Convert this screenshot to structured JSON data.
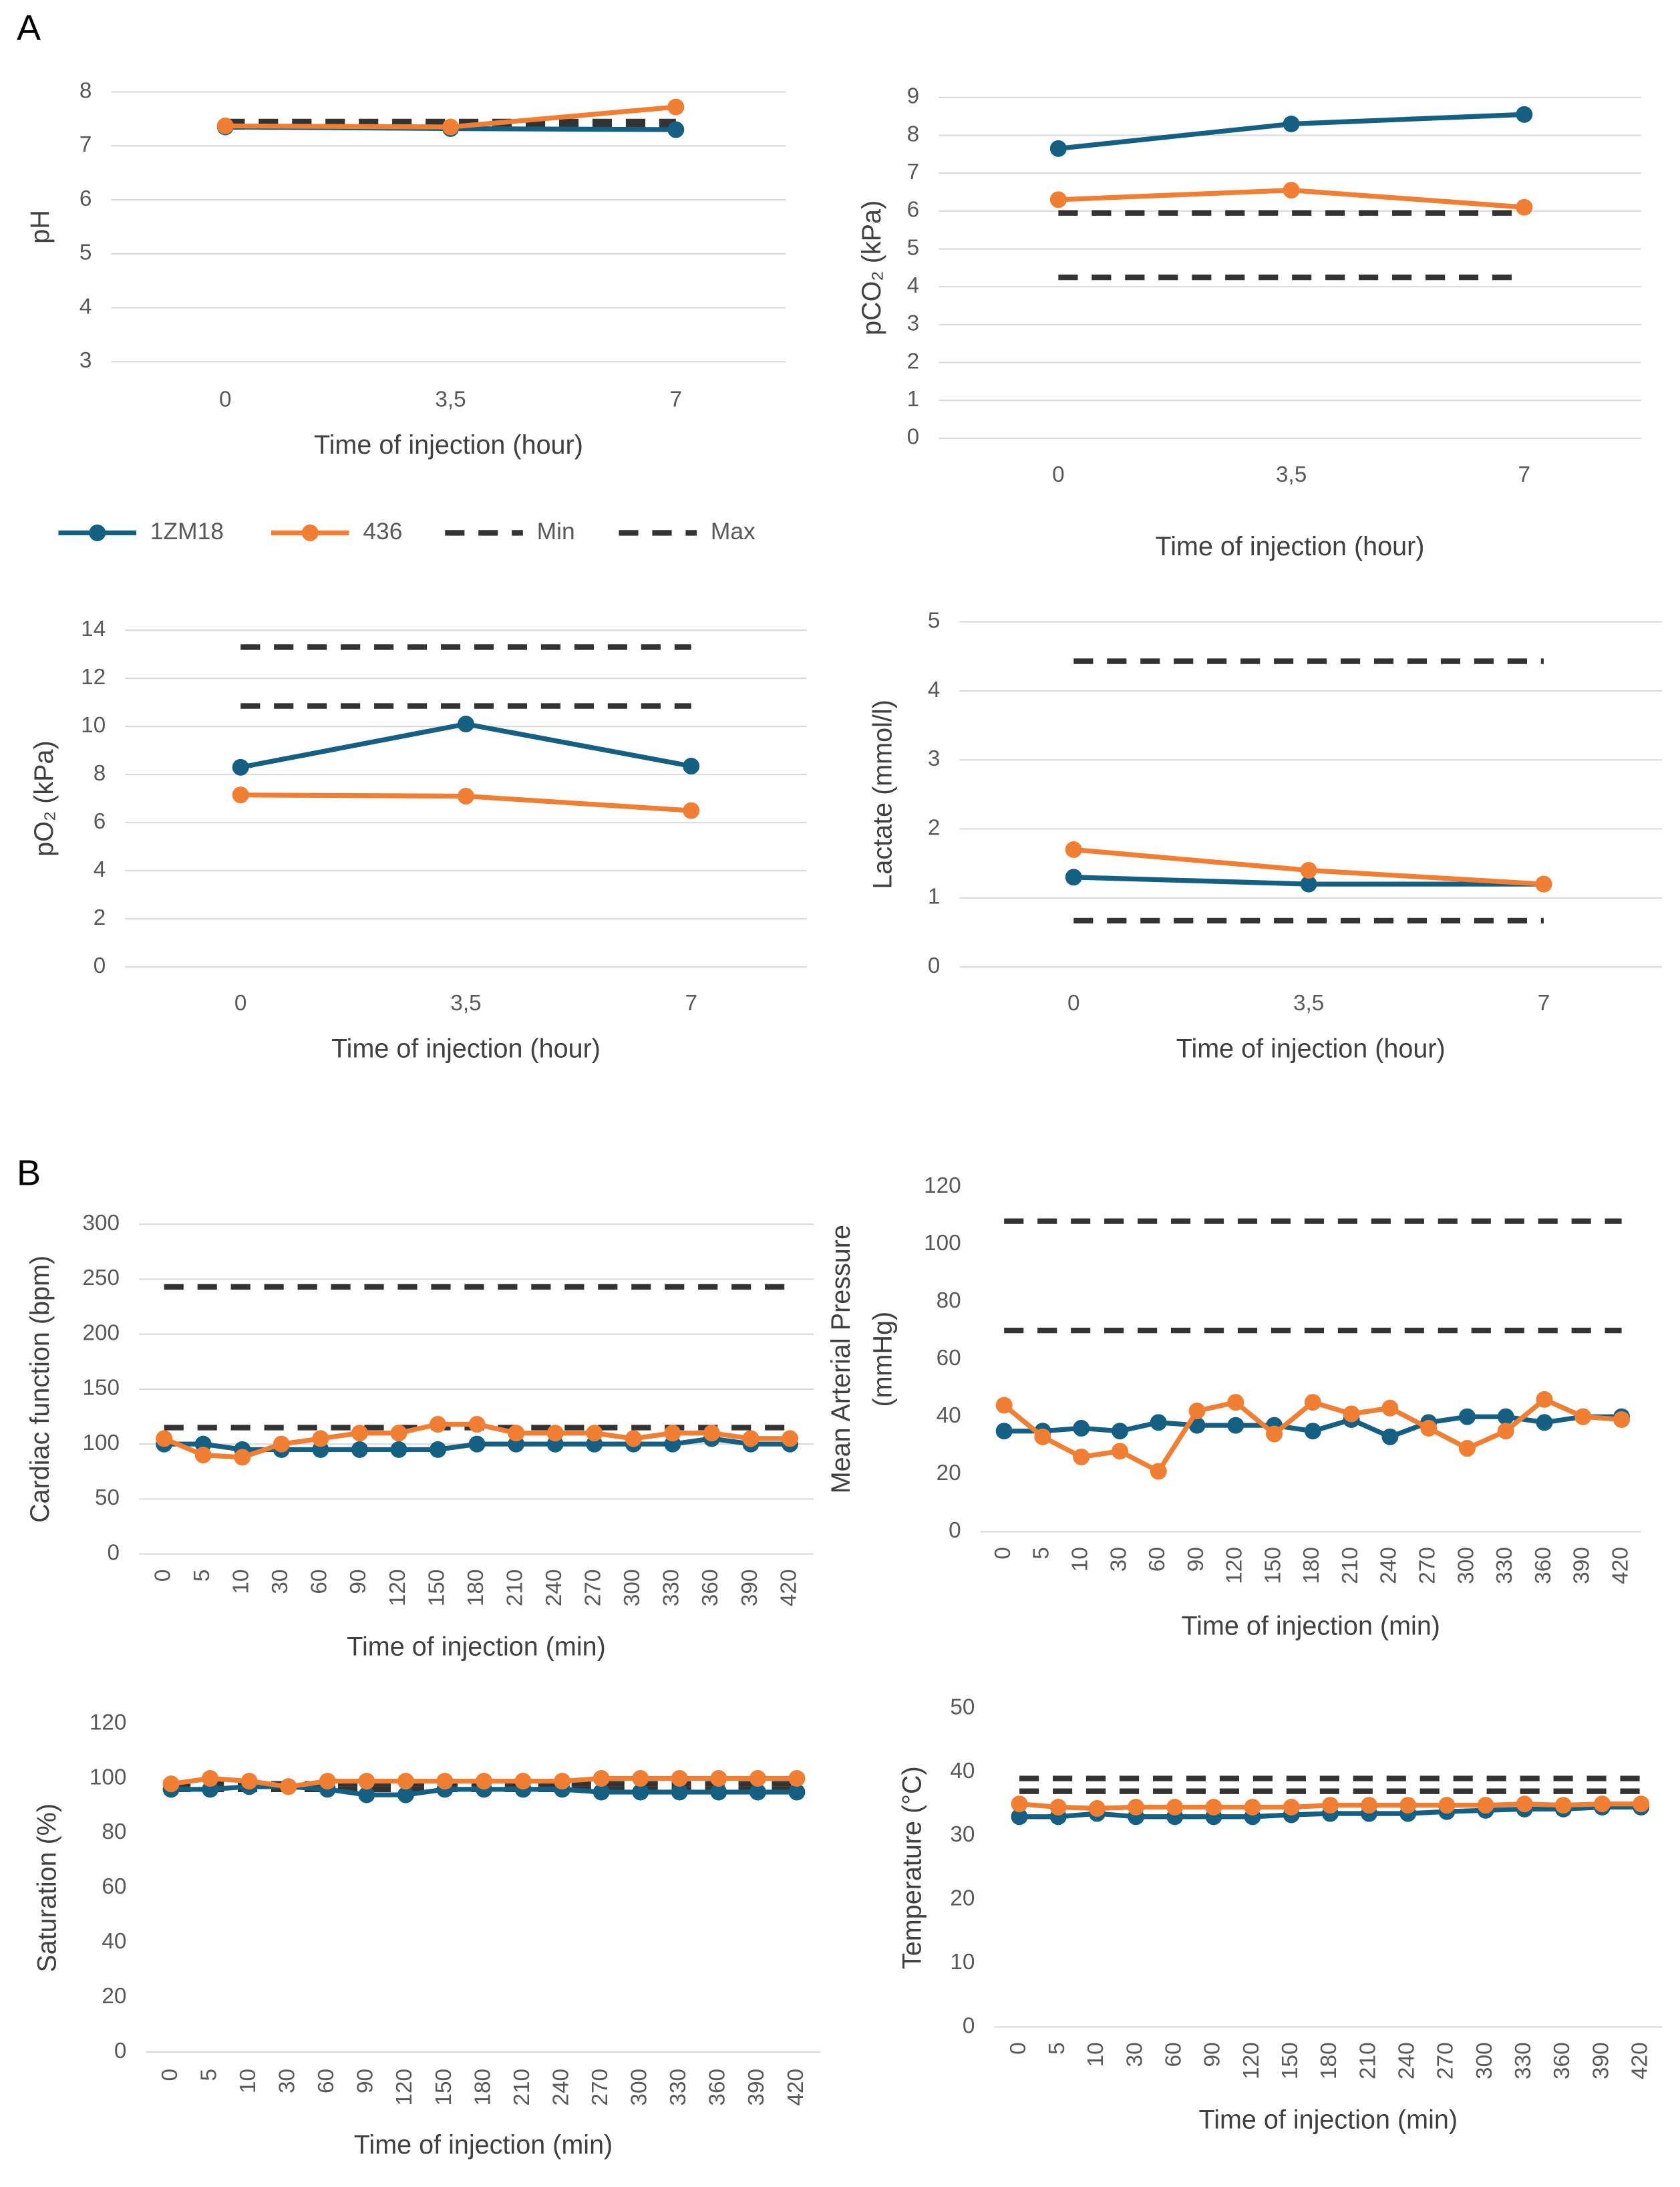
{
  "panels": [
    "A",
    "B"
  ],
  "chart_data": [
    {
      "type": "line",
      "y_label": "pH",
      "x_label": "Time of injection (hour)",
      "categories": [
        "0",
        "3,5",
        "7"
      ],
      "ylim": [
        3,
        8
      ],
      "yticks": [
        3,
        4,
        5,
        6,
        7,
        8
      ],
      "grid": true,
      "series": [
        {
          "name": "1ZM18",
          "color": "#156082",
          "values": [
            7.35,
            7.32,
            7.3
          ]
        },
        {
          "name": "436",
          "color": "#f07e33",
          "values": [
            7.37,
            7.35,
            7.72
          ]
        },
        {
          "name": "Min",
          "color": "#333333",
          "dashed": true,
          "values": [
            7.35,
            7.35,
            7.35
          ]
        },
        {
          "name": "Max",
          "color": "#333333",
          "dashed": true,
          "values": [
            7.45,
            7.45,
            7.45
          ]
        }
      ]
    },
    {
      "type": "line",
      "y_label": "pCO₂ (kPa)",
      "x_label": "Time of injection (hour)",
      "categories": [
        "0",
        "3,5",
        "7"
      ],
      "ylim": [
        0,
        9
      ],
      "yticks": [
        0,
        1,
        2,
        3,
        4,
        5,
        6,
        7,
        8,
        9
      ],
      "grid": true,
      "series": [
        {
          "color": "#156082",
          "values": [
            7.65,
            8.3,
            8.55
          ]
        },
        {
          "color": "#f07e33",
          "values": [
            6.3,
            6.55,
            6.1
          ]
        },
        {
          "color": "#333333",
          "dashed": true,
          "values": [
            4.25,
            4.25,
            4.25
          ]
        },
        {
          "color": "#333333",
          "dashed": true,
          "values": [
            5.95,
            5.95,
            5.95
          ]
        }
      ]
    },
    {
      "type": "line",
      "y_label": "pO₂ (kPa)",
      "x_label": "Time of injection (hour)",
      "categories": [
        "0",
        "3,5",
        "7"
      ],
      "ylim": [
        0,
        14
      ],
      "yticks": [
        0,
        2,
        4,
        6,
        8,
        10,
        12,
        14
      ],
      "grid": true,
      "series": [
        {
          "color": "#156082",
          "values": [
            8.3,
            10.1,
            8.35
          ]
        },
        {
          "color": "#f07e33",
          "values": [
            7.15,
            7.1,
            6.5
          ]
        },
        {
          "color": "#333333",
          "dashed": true,
          "values": [
            10.85,
            10.85,
            10.85
          ]
        },
        {
          "color": "#333333",
          "dashed": true,
          "values": [
            13.3,
            13.3,
            13.3
          ]
        }
      ]
    },
    {
      "type": "line",
      "y_label": "Lactate (mmol/l)",
      "x_label": "Time of injection (hour)",
      "categories": [
        "0",
        "3,5",
        "7"
      ],
      "ylim": [
        0,
        5
      ],
      "yticks": [
        0,
        1,
        2,
        3,
        4,
        5
      ],
      "grid": true,
      "series": [
        {
          "color": "#156082",
          "values": [
            1.3,
            1.2,
            1.2
          ]
        },
        {
          "color": "#f07e33",
          "values": [
            1.7,
            1.4,
            1.2
          ]
        },
        {
          "color": "#333333",
          "dashed": true,
          "values": [
            0.67,
            0.67,
            0.67
          ]
        },
        {
          "color": "#333333",
          "dashed": true,
          "values": [
            4.43,
            4.43,
            4.43
          ]
        }
      ]
    },
    {
      "type": "line",
      "y_label": "Cardiac function (bpm)",
      "x_label": "Time of injection (min)",
      "categories": [
        "0",
        "5",
        "10",
        "30",
        "60",
        "90",
        "120",
        "150",
        "180",
        "210",
        "240",
        "270",
        "300",
        "330",
        "360",
        "390",
        "420"
      ],
      "ylim": [
        0,
        300
      ],
      "yticks": [
        0,
        50,
        100,
        150,
        200,
        250,
        300
      ],
      "grid": true,
      "series": [
        {
          "color": "#156082",
          "values": [
            100,
            100,
            95,
            95,
            95,
            95,
            95,
            95,
            100,
            100,
            100,
            100,
            100,
            100,
            105,
            100,
            100
          ]
        },
        {
          "color": "#f07e33",
          "values": [
            105,
            90,
            88,
            100,
            105,
            110,
            110,
            118,
            118,
            110,
            110,
            110,
            105,
            110,
            110,
            105,
            105
          ]
        },
        {
          "color": "#333333",
          "dashed": true,
          "values": [
            115,
            115,
            115,
            115,
            115,
            115,
            115,
            115,
            115,
            115,
            115,
            115,
            115,
            115,
            115,
            115,
            115
          ]
        },
        {
          "color": "#333333",
          "dashed": true,
          "values": [
            243,
            243,
            243,
            243,
            243,
            243,
            243,
            243,
            243,
            243,
            243,
            243,
            243,
            243,
            243,
            243,
            243
          ]
        }
      ]
    },
    {
      "type": "line",
      "y_label": [
        "Mean Arterial Pressure",
        "(mmHg)"
      ],
      "x_label": "Time of injection (min)",
      "categories": [
        "0",
        "5",
        "10",
        "30",
        "60",
        "90",
        "120",
        "150",
        "180",
        "210",
        "240",
        "270",
        "300",
        "330",
        "360",
        "390",
        "420"
      ],
      "ylim": [
        0,
        120
      ],
      "yticks": [
        0,
        20,
        40,
        60,
        80,
        100,
        120
      ],
      "grid": false,
      "series": [
        {
          "color": "#156082",
          "values": [
            35,
            35,
            36,
            35,
            38,
            37,
            37,
            37,
            35,
            39,
            33,
            38,
            40,
            40,
            38,
            40,
            40
          ]
        },
        {
          "color": "#f07e33",
          "values": [
            44,
            33,
            26,
            28,
            21,
            42,
            45,
            34,
            45,
            41,
            43,
            36,
            29,
            35,
            46,
            40,
            39
          ]
        },
        {
          "color": "#333333",
          "dashed": true,
          "values": [
            70,
            70,
            70,
            70,
            70,
            70,
            70,
            70,
            70,
            70,
            70,
            70,
            70,
            70,
            70,
            70,
            70
          ]
        },
        {
          "color": "#333333",
          "dashed": true,
          "values": [
            108,
            108,
            108,
            108,
            108,
            108,
            108,
            108,
            108,
            108,
            108,
            108,
            108,
            108,
            108,
            108,
            108
          ]
        }
      ]
    },
    {
      "type": "line",
      "y_label": "Saturation (%)",
      "x_label": "Time of injection (min)",
      "categories": [
        "0",
        "5",
        "10",
        "30",
        "60",
        "90",
        "120",
        "150",
        "180",
        "210",
        "240",
        "270",
        "300",
        "330",
        "360",
        "390",
        "420"
      ],
      "ylim": [
        0,
        120
      ],
      "yticks": [
        0,
        20,
        40,
        60,
        80,
        100,
        120
      ],
      "grid": false,
      "series": [
        {
          "color": "#156082",
          "values": [
            96,
            96,
            97,
            97,
            96,
            94,
            94,
            96,
            96,
            96,
            96,
            95,
            95,
            95,
            95,
            95,
            95
          ]
        },
        {
          "color": "#f07e33",
          "values": [
            98,
            100,
            99,
            97,
            99,
            99,
            99,
            99,
            99,
            99,
            99,
            100,
            100,
            100,
            100,
            100,
            100
          ]
        },
        {
          "color": "#333333",
          "dashed": true,
          "values": [
            96,
            96,
            96,
            96,
            96,
            96,
            96,
            96,
            96,
            96,
            96,
            96,
            96,
            96,
            96,
            96,
            96
          ]
        },
        {
          "color": "#333333",
          "dashed": true,
          "values": [
            98,
            98,
            98,
            98,
            98,
            98,
            98,
            98,
            98,
            98,
            98,
            98,
            98,
            98,
            98,
            98,
            98
          ]
        }
      ]
    },
    {
      "type": "line",
      "y_label": "Temperature (°C)",
      "x_label": "Time of injection (min)",
      "categories": [
        "0",
        "5",
        "10",
        "30",
        "60",
        "90",
        "120",
        "150",
        "180",
        "210",
        "240",
        "270",
        "300",
        "330",
        "360",
        "390",
        "420"
      ],
      "ylim": [
        0,
        50
      ],
      "yticks": [
        0,
        10,
        20,
        30,
        40,
        50
      ],
      "grid": false,
      "series": [
        {
          "color": "#156082",
          "values": [
            33,
            33,
            33.5,
            33,
            33,
            33,
            33,
            33.3,
            33.5,
            33.5,
            33.5,
            33.8,
            34,
            34.2,
            34.2,
            34.5,
            34.5
          ]
        },
        {
          "color": "#f07e33",
          "values": [
            35,
            34.5,
            34.3,
            34.5,
            34.5,
            34.5,
            34.5,
            34.5,
            34.8,
            34.8,
            34.8,
            34.8,
            34.8,
            35,
            34.8,
            35,
            35
          ]
        },
        {
          "color": "#333333",
          "dashed": true,
          "values": [
            37,
            37,
            37,
            37,
            37,
            37,
            37,
            37,
            37,
            37,
            37,
            37,
            37,
            37,
            37,
            37,
            37
          ]
        },
        {
          "color": "#333333",
          "dashed": true,
          "values": [
            39,
            39,
            39,
            39,
            39,
            39,
            39,
            39,
            39,
            39,
            39,
            39,
            39,
            39,
            39,
            39,
            39
          ]
        }
      ]
    }
  ]
}
